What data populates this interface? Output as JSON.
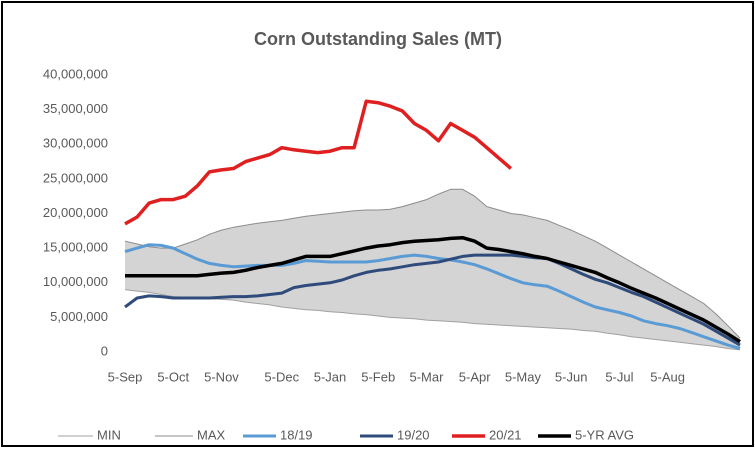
{
  "chart_data": {
    "type": "line",
    "title": "Corn Outstanding Sales (MT)",
    "categories": [
      "5-Sep",
      null,
      null,
      null,
      "5-Oct",
      null,
      null,
      null,
      "5-Nov",
      null,
      null,
      null,
      null,
      "5-Dec",
      null,
      null,
      null,
      "5-Jan",
      null,
      null,
      null,
      "5-Feb",
      null,
      null,
      null,
      "5-Mar",
      null,
      null,
      null,
      "5-Apr",
      null,
      null,
      null,
      "5-May",
      null,
      null,
      null,
      "5-Jun",
      null,
      null,
      null,
      "5-Jul",
      null,
      null,
      null,
      "5-Aug",
      null,
      null,
      null,
      null,
      null,
      null
    ],
    "ylim": [
      0,
      40000000
    ],
    "yticks": [
      0,
      {
        "value": 5000000,
        "label": "5,000,000"
      },
      {
        "value": 10000000,
        "label": "10,000,000"
      },
      {
        "value": 15000000,
        "label": "15,000,000"
      },
      {
        "value": 20000000,
        "label": "20,000,000"
      },
      {
        "value": 25000000,
        "label": "25,000,000"
      },
      {
        "value": 30000000,
        "label": "30,000,000"
      },
      {
        "value": 35000000,
        "label": "35,000,000"
      },
      {
        "value": 40000000,
        "label": "40,000,000"
      }
    ],
    "grid": false,
    "range_fill": "#d4d4d4",
    "series": [
      {
        "name": "MIN",
        "color": "#a0a0a0",
        "width": 1,
        "values": [
          9000000,
          8800000,
          8600000,
          8300000,
          8000000,
          7900000,
          7800000,
          7700000,
          7600000,
          7500000,
          7200000,
          7000000,
          6800000,
          6500000,
          6300000,
          6100000,
          6000000,
          5800000,
          5700000,
          5500000,
          5400000,
          5200000,
          5000000,
          4900000,
          4800000,
          4600000,
          4500000,
          4400000,
          4300000,
          4100000,
          4000000,
          3900000,
          3800000,
          3700000,
          3600000,
          3500000,
          3400000,
          3300000,
          3100000,
          3000000,
          2700000,
          2500000,
          2200000,
          2000000,
          1800000,
          1600000,
          1400000,
          1200000,
          1000000,
          800000,
          500000,
          300000
        ]
      },
      {
        "name": "MAX",
        "color": "#8c8c8c",
        "width": 1,
        "values": [
          16000000,
          15600000,
          15200000,
          15000000,
          15000000,
          15600000,
          16200000,
          17000000,
          17600000,
          18000000,
          18300000,
          18600000,
          18800000,
          19000000,
          19300000,
          19600000,
          19800000,
          20000000,
          20200000,
          20400000,
          20500000,
          20500000,
          20600000,
          21000000,
          21500000,
          22000000,
          22800000,
          23500000,
          23500000,
          22500000,
          21000000,
          20500000,
          20000000,
          19800000,
          19400000,
          19000000,
          18300000,
          17600000,
          16800000,
          16000000,
          15000000,
          14000000,
          13000000,
          12000000,
          11000000,
          10000000,
          9000000,
          8000000,
          7000000,
          5500000,
          3800000,
          2000000
        ]
      },
      {
        "name": "18/19",
        "color": "#5b9bd5",
        "width": 3,
        "values": [
          14500000,
          15000000,
          15500000,
          15400000,
          15000000,
          14200000,
          13400000,
          12800000,
          12500000,
          12300000,
          12400000,
          12500000,
          12500000,
          12500000,
          12800000,
          13200000,
          13100000,
          13000000,
          13000000,
          13000000,
          13000000,
          13200000,
          13500000,
          13800000,
          14000000,
          13800000,
          13500000,
          13300000,
          13000000,
          12600000,
          12000000,
          11300000,
          10600000,
          10000000,
          9700000,
          9500000,
          8800000,
          8000000,
          7200000,
          6500000,
          6100000,
          5700000,
          5200000,
          4500000,
          4100000,
          3800000,
          3400000,
          2800000,
          2200000,
          1600000,
          1000000,
          500000
        ]
      },
      {
        "name": "19/20",
        "color": "#2f4b7c",
        "width": 3,
        "values": [
          6500000,
          7800000,
          8100000,
          8000000,
          7800000,
          7800000,
          7800000,
          7800000,
          7900000,
          8000000,
          8000000,
          8100000,
          8300000,
          8500000,
          9300000,
          9600000,
          9800000,
          10000000,
          10400000,
          11000000,
          11500000,
          11800000,
          12000000,
          12300000,
          12600000,
          12800000,
          13000000,
          13400000,
          13800000,
          14000000,
          14000000,
          14000000,
          14000000,
          13800000,
          13600000,
          13500000,
          12800000,
          12000000,
          11200000,
          10500000,
          10000000,
          9300000,
          8600000,
          8000000,
          7200000,
          6400000,
          5600000,
          4800000,
          4000000,
          3000000,
          2000000,
          1000000
        ]
      },
      {
        "name": "20/21",
        "color": "#e02020",
        "width": 3.5,
        "values": [
          18500000,
          19500000,
          21500000,
          22000000,
          22000000,
          22500000,
          24000000,
          26000000,
          26300000,
          26500000,
          27500000,
          28000000,
          28500000,
          29500000,
          29200000,
          29000000,
          28800000,
          29000000,
          29500000,
          29500000,
          36200000,
          36000000,
          35500000,
          34800000,
          33000000,
          32000000,
          30500000,
          33000000,
          32000000,
          31000000,
          29500000,
          28000000,
          26500000,
          null,
          null,
          null,
          null,
          null,
          null,
          null,
          null,
          null,
          null,
          null,
          null,
          null,
          null,
          null,
          null,
          null,
          null,
          null
        ]
      },
      {
        "name": "5-YR AVG",
        "color": "#000000",
        "width": 3.5,
        "values": [
          11000000,
          11000000,
          11000000,
          11000000,
          11000000,
          11000000,
          11000000,
          11200000,
          11400000,
          11500000,
          11800000,
          12200000,
          12500000,
          12800000,
          13300000,
          13800000,
          13800000,
          13800000,
          14200000,
          14600000,
          15000000,
          15300000,
          15500000,
          15800000,
          16000000,
          16100000,
          16200000,
          16400000,
          16500000,
          16000000,
          15000000,
          14800000,
          14500000,
          14200000,
          13800000,
          13500000,
          13000000,
          12500000,
          12000000,
          11500000,
          10700000,
          10000000,
          9200000,
          8500000,
          7800000,
          7000000,
          6200000,
          5400000,
          4600000,
          3600000,
          2600000,
          1500000
        ]
      }
    ]
  }
}
